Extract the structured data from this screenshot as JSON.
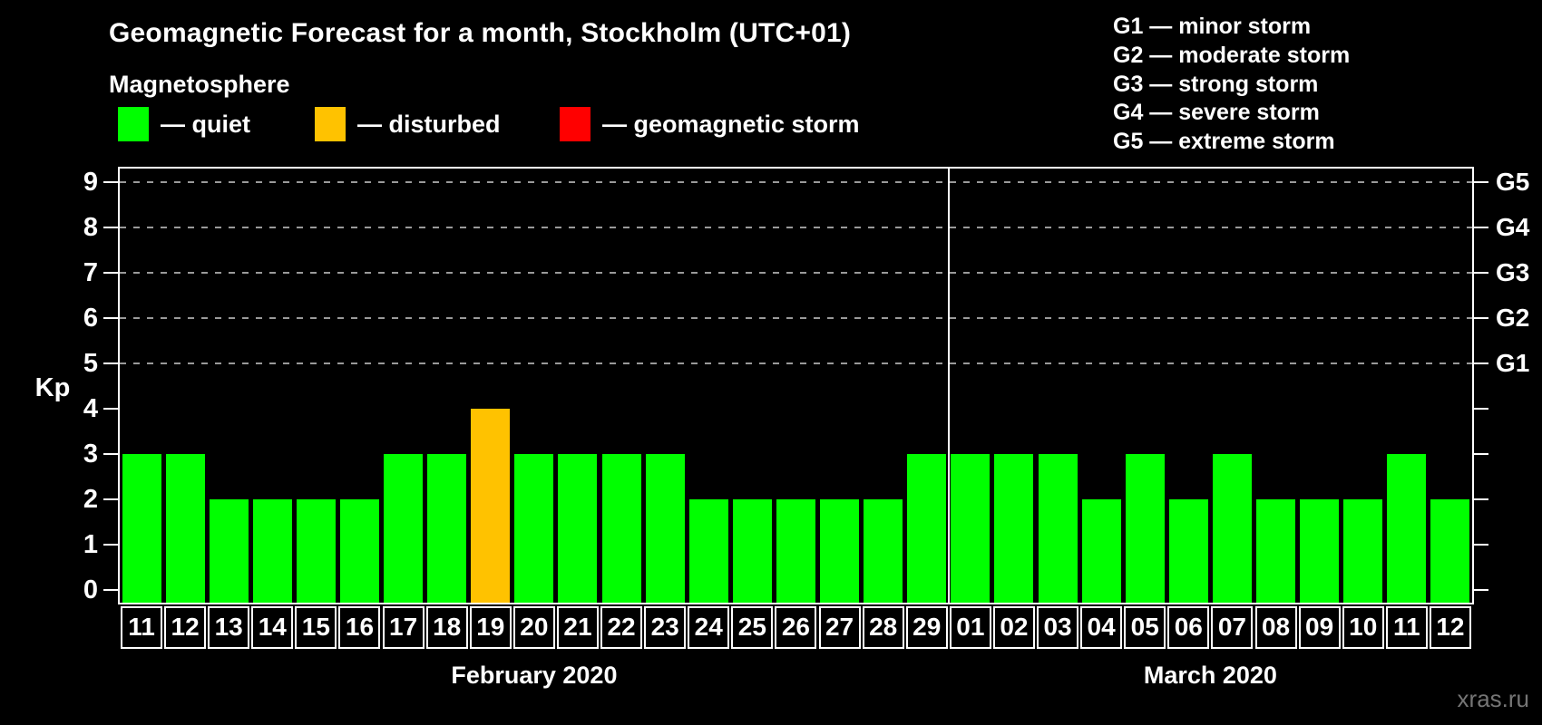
{
  "title": "Geomagnetic Forecast for a month, Stockholm (UTC+01)",
  "watermark": "xras.ru",
  "legend": {
    "title": "Magnetosphere",
    "items": [
      {
        "status": "quiet",
        "label": "— quiet"
      },
      {
        "status": "disturbed",
        "label": "— disturbed"
      },
      {
        "status": "storm",
        "label": "— geomagnetic storm"
      }
    ]
  },
  "g_legend": {
    "lines": [
      "G1 — minor storm",
      "G2 — moderate storm",
      "G3 — strong storm",
      "G4 — severe storm",
      "G5 — extreme storm"
    ]
  },
  "chart_data": {
    "type": "bar",
    "title": "Geomagnetic Forecast for a month, Stockholm (UTC+01)",
    "ylabel": "Kp",
    "ylim": [
      0,
      9
    ],
    "y_ticks": [
      0,
      1,
      2,
      3,
      4,
      5,
      6,
      7,
      8,
      9
    ],
    "grid_levels": [
      5,
      6,
      7,
      8,
      9
    ],
    "grid_style": "dashed gray horizontal lines at G-storm levels",
    "right_axis_ticks": [
      {
        "value": 5,
        "label": "G1"
      },
      {
        "value": 6,
        "label": "G2"
      },
      {
        "value": 7,
        "label": "G3"
      },
      {
        "value": 8,
        "label": "G4"
      },
      {
        "value": 9,
        "label": "G5"
      }
    ],
    "months": [
      {
        "label": "February 2020",
        "count": 19
      },
      {
        "label": "March 2020",
        "count": 12
      }
    ],
    "month_separator_after_index": 18,
    "categories": [
      "11",
      "12",
      "13",
      "14",
      "15",
      "16",
      "17",
      "18",
      "19",
      "20",
      "21",
      "22",
      "23",
      "24",
      "25",
      "26",
      "27",
      "28",
      "29",
      "01",
      "02",
      "03",
      "04",
      "05",
      "06",
      "07",
      "08",
      "09",
      "10",
      "11",
      "12"
    ],
    "values": [
      3,
      3,
      2,
      2,
      2,
      2,
      3,
      3,
      4,
      3,
      3,
      3,
      3,
      2,
      2,
      2,
      2,
      2,
      3,
      3,
      3,
      3,
      2,
      3,
      2,
      3,
      2,
      2,
      2,
      3,
      2
    ],
    "statuses": [
      "quiet",
      "quiet",
      "quiet",
      "quiet",
      "quiet",
      "quiet",
      "quiet",
      "quiet",
      "disturbed",
      "quiet",
      "quiet",
      "quiet",
      "quiet",
      "quiet",
      "quiet",
      "quiet",
      "quiet",
      "quiet",
      "quiet",
      "quiet",
      "quiet",
      "quiet",
      "quiet",
      "quiet",
      "quiet",
      "quiet",
      "quiet",
      "quiet",
      "quiet",
      "quiet",
      "quiet"
    ],
    "status_colors": {
      "quiet": "#00ff00",
      "disturbed": "#ffc200",
      "storm": "#ff0000"
    }
  }
}
